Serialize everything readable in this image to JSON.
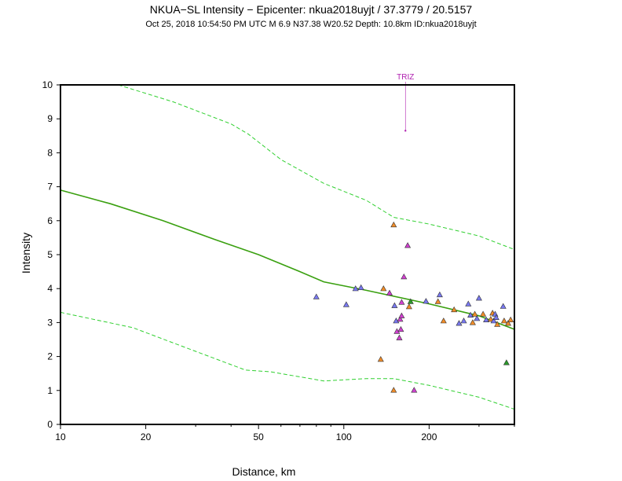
{
  "header": {
    "title": "NKUA−SL Intensity −  Epicenter: nkua2018uyjt / 37.3779 / 20.5157",
    "subtitle": "Oct 25, 2018 10:54:50 PM UTC    M 6.9    N37.38 W20.52   Depth: 10.8km   ID:nkua2018uyjt"
  },
  "colors": {
    "orange": "#f08c28",
    "blue": "#7878f0",
    "magenta": "#d040d0",
    "green_marker": "#2a9a2a",
    "model_line": "#3aa010",
    "bound_line": "#30d030",
    "frame": "#000000"
  },
  "chart_data": {
    "type": "scatter",
    "xscale": "log",
    "xlabel": "Distance, km",
    "ylabel": "Intensity",
    "xlim": [
      10,
      400
    ],
    "ylim": [
      0,
      10
    ],
    "xticks": [
      10,
      20,
      50,
      100,
      200
    ],
    "xtick_labels": [
      "10",
      "20",
      "50",
      "100",
      "200"
    ],
    "yticks": [
      0,
      1,
      2,
      3,
      4,
      5,
      6,
      7,
      8,
      9,
      10
    ],
    "ytick_labels": [
      "0",
      "1",
      "2",
      "3",
      "4",
      "5",
      "6",
      "7",
      "8",
      "9",
      "10"
    ],
    "model_curve": [
      [
        10,
        6.9
      ],
      [
        15,
        6.5
      ],
      [
        23,
        6.0
      ],
      [
        35,
        5.45
      ],
      [
        50,
        5.0
      ],
      [
        70,
        4.5
      ],
      [
        85,
        4.2
      ],
      [
        120,
        3.95
      ],
      [
        200,
        3.55
      ],
      [
        300,
        3.2
      ],
      [
        400,
        2.8
      ]
    ],
    "upper_bound": [
      [
        16,
        10.0
      ],
      [
        25,
        9.5
      ],
      [
        40,
        8.85
      ],
      [
        46,
        8.55
      ],
      [
        60,
        7.8
      ],
      [
        85,
        7.1
      ],
      [
        120,
        6.6
      ],
      [
        150,
        6.1
      ],
      [
        200,
        5.9
      ],
      [
        300,
        5.55
      ],
      [
        400,
        5.15
      ]
    ],
    "lower_bound": [
      [
        10,
        3.3
      ],
      [
        18,
        2.85
      ],
      [
        25,
        2.4
      ],
      [
        45,
        1.6
      ],
      [
        55,
        1.55
      ],
      [
        85,
        1.28
      ],
      [
        120,
        1.35
      ],
      [
        150,
        1.35
      ],
      [
        200,
        1.15
      ],
      [
        300,
        0.8
      ],
      [
        400,
        0.45
      ]
    ],
    "stations": [
      {
        "d": 80,
        "i": 3.76,
        "c": "blue"
      },
      {
        "d": 102,
        "i": 3.53,
        "c": "blue"
      },
      {
        "d": 110,
        "i": 4.0,
        "c": "blue"
      },
      {
        "d": 115,
        "i": 4.03,
        "c": "blue"
      },
      {
        "d": 135,
        "i": 1.92,
        "c": "orange"
      },
      {
        "d": 138,
        "i": 4.0,
        "c": "orange"
      },
      {
        "d": 145,
        "i": 3.87,
        "c": "magenta"
      },
      {
        "d": 150,
        "i": 5.88,
        "c": "orange"
      },
      {
        "d": 151,
        "i": 3.5,
        "c": "blue"
      },
      {
        "d": 153,
        "i": 3.05,
        "c": "blue"
      },
      {
        "d": 154,
        "i": 2.74,
        "c": "magenta"
      },
      {
        "d": 150,
        "i": 1.01,
        "c": "orange"
      },
      {
        "d": 157,
        "i": 2.55,
        "c": "magenta"
      },
      {
        "d": 158,
        "i": 3.1,
        "c": "magenta"
      },
      {
        "d": 160,
        "i": 3.2,
        "c": "magenta"
      },
      {
        "d": 159,
        "i": 2.8,
        "c": "magenta"
      },
      {
        "d": 160,
        "i": 3.6,
        "c": "magenta"
      },
      {
        "d": 163,
        "i": 4.35,
        "c": "magenta"
      },
      {
        "d": 168,
        "i": 5.27,
        "c": "magenta"
      },
      {
        "d": 170,
        "i": 3.47,
        "c": "orange"
      },
      {
        "d": 172,
        "i": 3.62,
        "c": "green_marker"
      },
      {
        "d": 177,
        "i": 1.01,
        "c": "magenta"
      },
      {
        "d": 195,
        "i": 3.63,
        "c": "blue"
      },
      {
        "d": 215,
        "i": 3.62,
        "c": "orange"
      },
      {
        "d": 218,
        "i": 3.82,
        "c": "blue"
      },
      {
        "d": 225,
        "i": 3.05,
        "c": "orange"
      },
      {
        "d": 245,
        "i": 3.38,
        "c": "orange"
      },
      {
        "d": 255,
        "i": 2.98,
        "c": "blue"
      },
      {
        "d": 265,
        "i": 3.05,
        "c": "blue"
      },
      {
        "d": 275,
        "i": 3.55,
        "c": "blue"
      },
      {
        "d": 280,
        "i": 3.22,
        "c": "blue"
      },
      {
        "d": 285,
        "i": 3.0,
        "c": "orange"
      },
      {
        "d": 290,
        "i": 3.25,
        "c": "orange"
      },
      {
        "d": 295,
        "i": 3.12,
        "c": "blue"
      },
      {
        "d": 300,
        "i": 3.72,
        "c": "blue"
      },
      {
        "d": 310,
        "i": 3.25,
        "c": "orange"
      },
      {
        "d": 318,
        "i": 3.08,
        "c": "blue"
      },
      {
        "d": 330,
        "i": 3.1,
        "c": "orange"
      },
      {
        "d": 335,
        "i": 3.28,
        "c": "orange"
      },
      {
        "d": 338,
        "i": 3.05,
        "c": "blue"
      },
      {
        "d": 342,
        "i": 3.25,
        "c": "blue"
      },
      {
        "d": 345,
        "i": 3.15,
        "c": "blue"
      },
      {
        "d": 348,
        "i": 2.95,
        "c": "orange"
      },
      {
        "d": 365,
        "i": 3.48,
        "c": "blue"
      },
      {
        "d": 368,
        "i": 3.05,
        "c": "orange"
      },
      {
        "d": 375,
        "i": 1.82,
        "c": "green_marker"
      },
      {
        "d": 380,
        "i": 2.98,
        "c": "orange"
      },
      {
        "d": 388,
        "i": 3.08,
        "c": "orange"
      }
    ],
    "annotation": {
      "label": "TRIZ",
      "d": 165,
      "i": 8.65
    }
  }
}
